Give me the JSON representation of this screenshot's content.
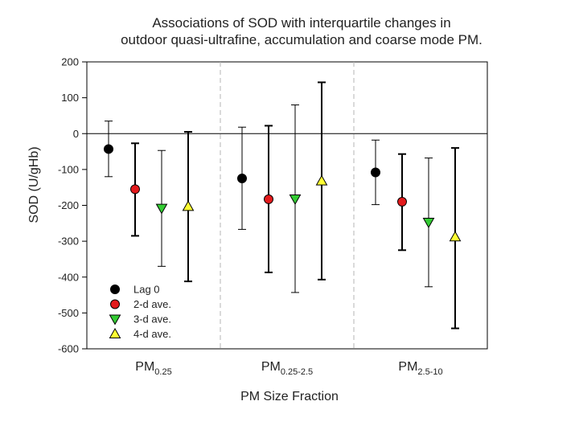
{
  "chart_data": {
    "type": "scatter",
    "title_lines": [
      "Associations of SOD with interquartile changes in",
      "outdoor quasi-ultrafine, accumulation and coarse mode PM."
    ],
    "xlabel": "PM Size Fraction",
    "ylabel": "SOD (U/gHb)",
    "ylim": [
      -600,
      200
    ],
    "yticks": [
      "200",
      "100",
      "0",
      "-100",
      "-200",
      "-300",
      "-400",
      "-500",
      "-600"
    ],
    "reference_line": 0,
    "categories": [
      {
        "main": "PM",
        "sub": "0.25"
      },
      {
        "main": "PM",
        "sub": "0.25-2.5"
      },
      {
        "main": "PM",
        "sub": "2.5-10"
      }
    ],
    "series": [
      {
        "name": "Lag 0",
        "marker": "circle",
        "color": "#000000",
        "points": [
          {
            "estimate": -43,
            "lower": -120,
            "upper": 35
          },
          {
            "estimate": -125,
            "lower": -267,
            "upper": 18
          },
          {
            "estimate": -108,
            "lower": -198,
            "upper": -18
          }
        ]
      },
      {
        "name": "2-d ave.",
        "marker": "circle",
        "color": "#e31a1c",
        "points": [
          {
            "estimate": -155,
            "lower": -285,
            "upper": -27
          },
          {
            "estimate": -183,
            "lower": -387,
            "upper": 22
          },
          {
            "estimate": -190,
            "lower": -325,
            "upper": -57
          }
        ]
      },
      {
        "name": "3-d ave.",
        "marker": "triangle-down",
        "color": "#33cc33",
        "points": [
          {
            "estimate": -208,
            "lower": -370,
            "upper": -47
          },
          {
            "estimate": -182,
            "lower": -443,
            "upper": 80
          },
          {
            "estimate": -247,
            "lower": -427,
            "upper": -68
          }
        ]
      },
      {
        "name": "4-d ave.",
        "marker": "triangle-up",
        "color": "#ffff33",
        "points": [
          {
            "estimate": -203,
            "lower": -412,
            "upper": 5
          },
          {
            "estimate": -132,
            "lower": -407,
            "upper": 143
          },
          {
            "estimate": -288,
            "lower": -543,
            "upper": -40
          }
        ]
      }
    ],
    "legend_position": "bottom-left"
  }
}
